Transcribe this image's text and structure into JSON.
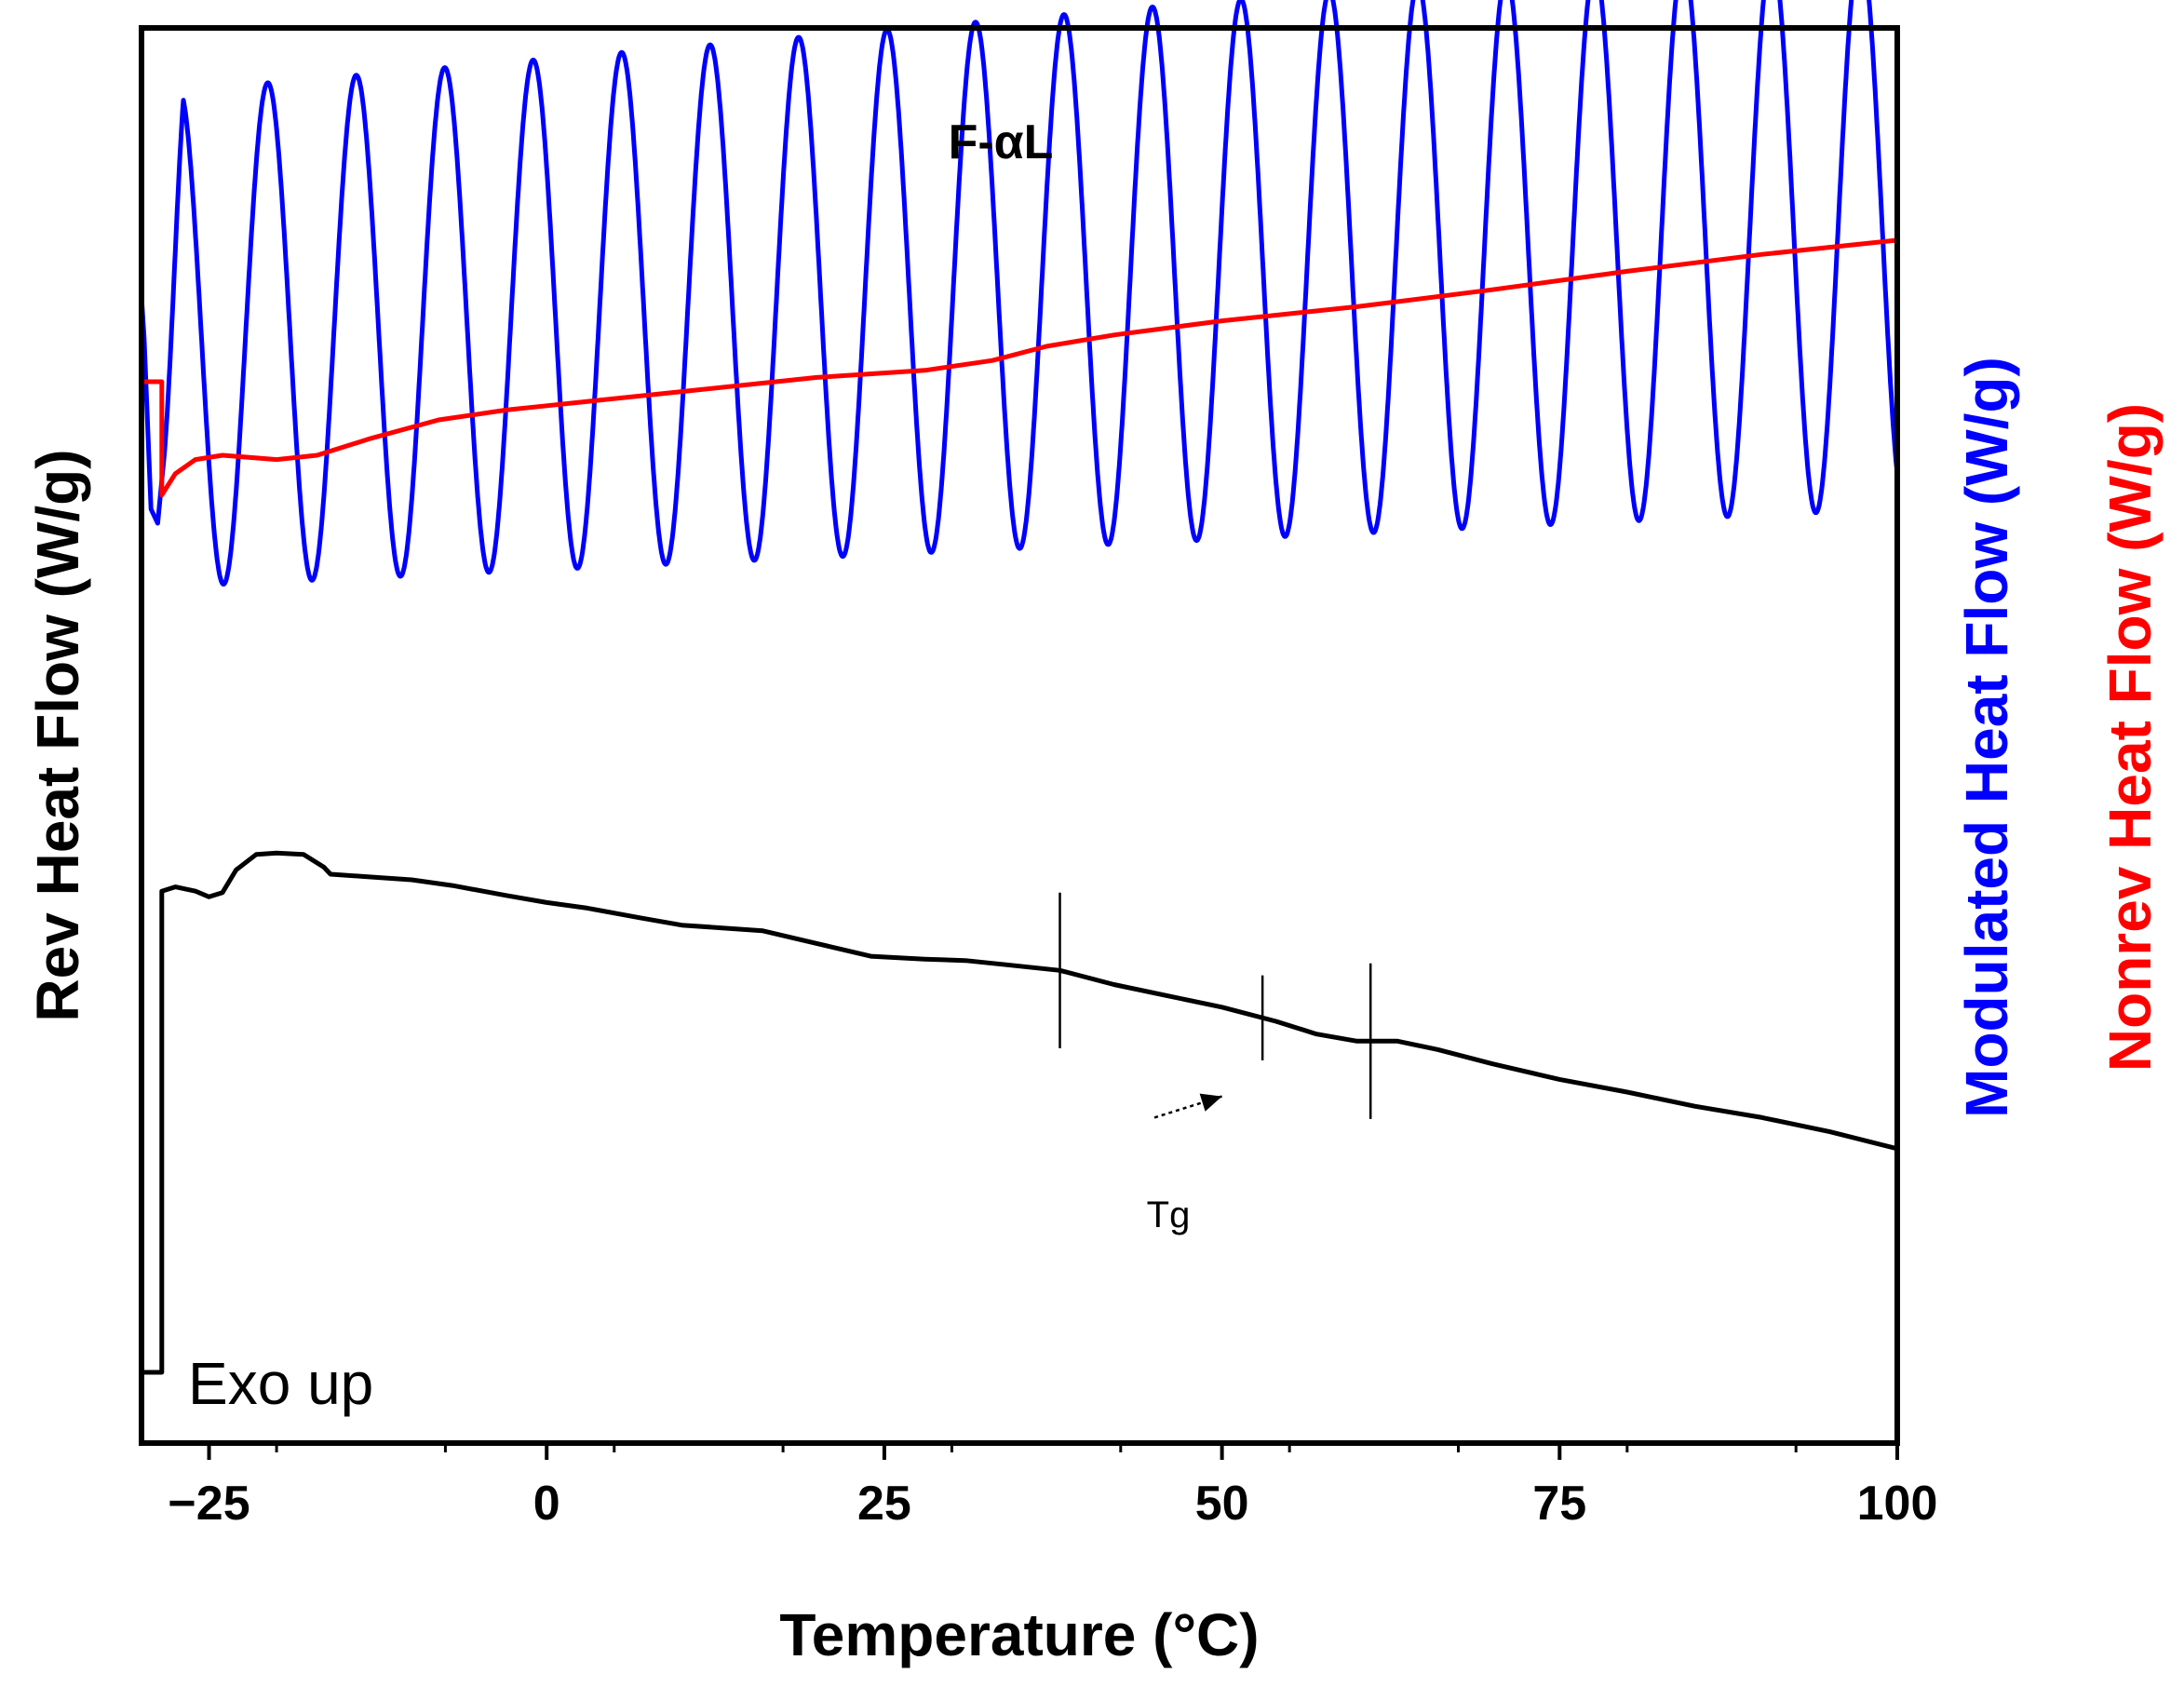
{
  "chart_data": {
    "type": "line",
    "title": "F-αL",
    "xlabel": "Temperature (°C)",
    "ylabel_left": "Rev Heat Flow (W/g)",
    "ylabel_right_1": "Modulated Heat Flow (W/g)",
    "ylabel_right_2": "Nonrev Heat Flow (W/g)",
    "xlim": [
      -30,
      100
    ],
    "xticks": [
      -25,
      0,
      25,
      50,
      75,
      100
    ],
    "x_tick_labels": [
      "−25",
      "0",
      "25",
      "50",
      "75",
      "100"
    ],
    "ylim": [
      0,
      100
    ],
    "y_units_note": "relative units; y axes carry no tick labels",
    "annotations": {
      "tg_label": "Tg",
      "exo_label": "Exo up"
    },
    "tg_markers": [
      38,
      53,
      61
    ],
    "tg_arrow": {
      "from": [
        45,
        23
      ],
      "to": [
        50,
        24.5
      ]
    },
    "colors": {
      "rev": "#000000",
      "modulated": "#0000ff",
      "nonrev": "#ff0000",
      "axis": "#000000"
    },
    "series": [
      {
        "name": "Modulated Heat Flow",
        "axis": "right",
        "color": "#0000ff",
        "kind": "oscillation",
        "period": 6.55,
        "first_peak_x": -27.2,
        "amplitude_start": 17.5,
        "amplitude_end": 20,
        "midline_start": 78,
        "midline_end": 86,
        "start_transient": [
          [
            -30,
            81
          ],
          [
            -29.8,
            78
          ],
          [
            -29.3,
            66
          ],
          [
            -28.8,
            65
          ],
          [
            -28.3,
            70
          ]
        ]
      },
      {
        "name": "Nonrev Heat Flow",
        "axis": "right",
        "color": "#ff0000",
        "points": [
          [
            -30,
            75
          ],
          [
            -28.5,
            75
          ],
          [
            -28.5,
            67
          ],
          [
            -27.5,
            68.5
          ],
          [
            -26,
            69.5
          ],
          [
            -24,
            69.8
          ],
          [
            -20,
            69.5
          ],
          [
            -17,
            69.8
          ],
          [
            -13,
            71
          ],
          [
            -8,
            72.3
          ],
          [
            -3,
            73
          ],
          [
            0,
            73.3
          ],
          [
            10,
            74.3
          ],
          [
            20,
            75.3
          ],
          [
            28,
            75.8
          ],
          [
            33,
            76.5
          ],
          [
            37,
            77.5
          ],
          [
            42,
            78.3
          ],
          [
            50,
            79.3
          ],
          [
            60,
            80.3
          ],
          [
            70,
            81.5
          ],
          [
            80,
            82.8
          ],
          [
            90,
            84
          ],
          [
            100,
            85
          ]
        ]
      },
      {
        "name": "Rev Heat Flow",
        "axis": "left",
        "color": "#000000",
        "points": [
          [
            -30,
            5
          ],
          [
            -28.5,
            5
          ],
          [
            -28.5,
            39
          ],
          [
            -27.5,
            39.3
          ],
          [
            -26,
            39
          ],
          [
            -25,
            38.6
          ],
          [
            -24,
            38.9
          ],
          [
            -23,
            40.5
          ],
          [
            -21.5,
            41.6
          ],
          [
            -20,
            41.7
          ],
          [
            -18,
            41.6
          ],
          [
            -16.5,
            40.7
          ],
          [
            -16,
            40.2
          ],
          [
            -13,
            40
          ],
          [
            -10,
            39.8
          ],
          [
            -7,
            39.4
          ],
          [
            -3,
            38.7
          ],
          [
            0,
            38.2
          ],
          [
            3,
            37.8
          ],
          [
            7,
            37.1
          ],
          [
            10,
            36.6
          ],
          [
            13,
            36.4
          ],
          [
            16,
            36.2
          ],
          [
            20,
            35.3
          ],
          [
            24,
            34.4
          ],
          [
            28,
            34.2
          ],
          [
            31,
            34.1
          ],
          [
            34,
            33.8
          ],
          [
            38,
            33.4
          ],
          [
            42,
            32.4
          ],
          [
            46,
            31.6
          ],
          [
            50,
            30.8
          ],
          [
            54,
            29.8
          ],
          [
            57,
            28.9
          ],
          [
            60,
            28.4
          ],
          [
            63,
            28.4
          ],
          [
            66,
            27.8
          ],
          [
            70,
            26.8
          ],
          [
            75,
            25.7
          ],
          [
            80,
            24.8
          ],
          [
            85,
            23.8
          ],
          [
            90,
            23
          ],
          [
            95,
            22
          ],
          [
            100,
            20.8
          ]
        ]
      }
    ]
  }
}
